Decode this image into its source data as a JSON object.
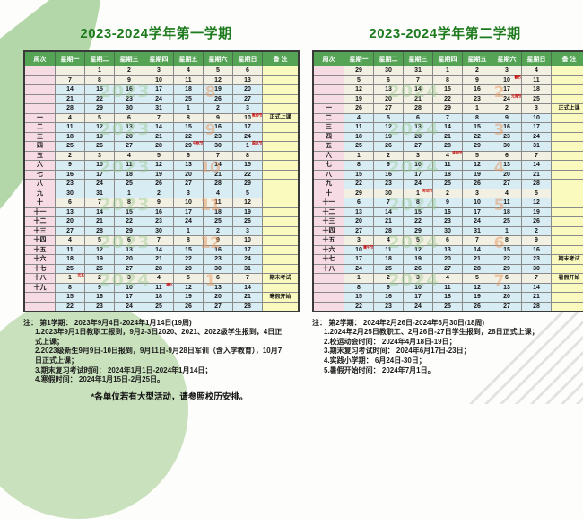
{
  "page": {
    "footnote": "*各单位若有大型活动，请参照校历安排。"
  },
  "colors": {
    "title_green": "#1d7a1d",
    "header_green": "#55a355",
    "week_column_pink": "#f7dbe4",
    "day_blue": "#d8ecf4",
    "day_cream": "#f2f0e2",
    "remark_yellow": "#fafabe",
    "festival_red": "#c40000",
    "watermark_green": "#96c88c",
    "watermark_orange": "#e8945c"
  },
  "calendars": {
    "first": {
      "title": "2023-2024学年第一学期",
      "columns": [
        "周次",
        "星期一",
        "星期二",
        "星期三",
        "星期四",
        "星期五",
        "星期六",
        "星期日",
        "备 注"
      ],
      "rows": [
        {
          "week": "",
          "tone": "cream",
          "days": [
            "",
            "1",
            "2",
            "3",
            "4",
            "5",
            "6"
          ],
          "note": ""
        },
        {
          "week": "",
          "tone": "cream",
          "days": [
            "7",
            "8",
            "9",
            "10",
            "11",
            "12",
            "13"
          ],
          "note": ""
        },
        {
          "week": "",
          "tone": "blue",
          "days": [
            "14",
            "15",
            "16",
            "17",
            "18",
            "19",
            "20"
          ],
          "note": ""
        },
        {
          "week": "",
          "tone": "blue",
          "days": [
            "21",
            "22",
            "23",
            "24",
            "25",
            "26",
            "27"
          ],
          "note": ""
        },
        {
          "week": "",
          "tone": "blue",
          "days": [
            "28",
            "29",
            "30",
            "31",
            "1",
            "2",
            "3"
          ],
          "note": ""
        },
        {
          "week": "一",
          "tone": "cream",
          "days": [
            "4",
            "5",
            "6",
            "7",
            "8",
            "9",
            [
              "10",
              "教师节"
            ]
          ],
          "note": "正式上课"
        },
        {
          "week": "二",
          "tone": "blue",
          "days": [
            "11",
            "12",
            "13",
            "14",
            "15",
            "16",
            "17"
          ],
          "note": ""
        },
        {
          "week": "三",
          "tone": "blue",
          "days": [
            "18",
            "19",
            "20",
            "21",
            "22",
            "23",
            "24"
          ],
          "note": ""
        },
        {
          "week": "四",
          "tone": "blue",
          "days": [
            "25",
            "26",
            "27",
            "28",
            [
              "29",
              "中秋节"
            ],
            "30",
            [
              "1",
              "国庆节"
            ]
          ],
          "note": ""
        },
        {
          "week": "五",
          "tone": "cream",
          "days": [
            "2",
            "3",
            "4",
            "5",
            "6",
            "7",
            "8"
          ],
          "note": ""
        },
        {
          "week": "六",
          "tone": "blue",
          "days": [
            "9",
            "10",
            "11",
            "12",
            "13",
            "14",
            "15"
          ],
          "note": ""
        },
        {
          "week": "七",
          "tone": "blue",
          "days": [
            "16",
            "17",
            "18",
            "19",
            "20",
            "21",
            "22"
          ],
          "note": ""
        },
        {
          "week": "八",
          "tone": "blue",
          "days": [
            "23",
            "24",
            "25",
            "26",
            "27",
            "28",
            "29"
          ],
          "note": ""
        },
        {
          "week": "九",
          "tone": "blue",
          "days": [
            "30",
            "31",
            "1",
            "2",
            "3",
            "4",
            "5"
          ],
          "note": ""
        },
        {
          "week": "十",
          "tone": "cream",
          "days": [
            "6",
            "7",
            "8",
            "9",
            "10",
            "11",
            "12"
          ],
          "note": ""
        },
        {
          "week": "十一",
          "tone": "blue",
          "days": [
            "13",
            "14",
            "15",
            "16",
            "17",
            "18",
            "19"
          ],
          "note": ""
        },
        {
          "week": "十二",
          "tone": "blue",
          "days": [
            "20",
            "21",
            "22",
            "23",
            "24",
            "25",
            "26"
          ],
          "note": ""
        },
        {
          "week": "十三",
          "tone": "blue",
          "days": [
            "27",
            "28",
            "29",
            "30",
            "1",
            "2",
            "3"
          ],
          "note": ""
        },
        {
          "week": "十四",
          "tone": "cream",
          "days": [
            "4",
            "5",
            "6",
            "7",
            "8",
            "9",
            "10"
          ],
          "note": ""
        },
        {
          "week": "十五",
          "tone": "blue",
          "days": [
            "11",
            "12",
            "13",
            "14",
            "15",
            "16",
            "17"
          ],
          "note": ""
        },
        {
          "week": "十六",
          "tone": "blue",
          "days": [
            "18",
            "19",
            "20",
            "21",
            "22",
            "23",
            "24"
          ],
          "note": ""
        },
        {
          "week": "十七",
          "tone": "blue",
          "days": [
            "25",
            "26",
            "27",
            "28",
            "29",
            "30",
            "31"
          ],
          "note": ""
        },
        {
          "week": "十八",
          "tone": "cream",
          "days": [
            [
              "1",
              "元旦"
            ],
            "2",
            "3",
            "4",
            "5",
            "6",
            "7"
          ],
          "note": "期末考试"
        },
        {
          "week": "十九",
          "tone": "blue",
          "days": [
            "8",
            "9",
            "10",
            [
              "11",
              "腊八"
            ],
            "12",
            "13",
            "14"
          ],
          "note": ""
        },
        {
          "week": "",
          "tone": "blue",
          "days": [
            "15",
            "16",
            "17",
            "18",
            "19",
            "20",
            "21"
          ],
          "note": "寒假开始"
        },
        {
          "week": "",
          "tone": "blue",
          "days": [
            "22",
            "23",
            "24",
            "25",
            "26",
            "27",
            "28"
          ],
          "note": ""
        }
      ],
      "watermarks": {
        "years": [
          {
            "text": "2023",
            "row": 2
          },
          {
            "text": "2023",
            "row": 6
          },
          {
            "text": "2023",
            "row": 10
          },
          {
            "text": "2023",
            "row": 14
          },
          {
            "text": "2023",
            "row": 18
          },
          {
            "text": "2024",
            "row": 22
          }
        ],
        "months": [
          {
            "text": "8",
            "row": 2
          },
          {
            "text": "9",
            "row": 6
          },
          {
            "text": "10",
            "row": 10
          },
          {
            "text": "11",
            "row": 14
          },
          {
            "text": "12",
            "row": 18
          },
          {
            "text": "1",
            "row": 22
          }
        ]
      },
      "notes_title": "注： 第1学期： 2023年9月4日-2024年1月14日(19周)",
      "notes": [
        "1.2023年9月1日教职工报到，9月2-3日2020、2021、2022级学生报到，4日正式上课；",
        "2.2023级新生9月9日-10日报到，9月11日-9月28日军训（含入学教育），10月7日正式上课；",
        "3.期末复习考试时间： 2024年1月1日-2024年1月14日；",
        "4.寒假时间： 2024年1月15日-2月25日。"
      ]
    },
    "second": {
      "title": "2023-2024学年第二学期",
      "columns": [
        "周次",
        "星期一",
        "星期二",
        "星期三",
        "星期四",
        "星期五",
        "星期六",
        "星期日",
        "备 注"
      ],
      "rows": [
        {
          "week": "",
          "tone": "cream",
          "days": [
            "29",
            "30",
            "31",
            "1",
            "2",
            "3",
            "4"
          ],
          "note": ""
        },
        {
          "week": "",
          "tone": "cream",
          "days": [
            "5",
            "6",
            "7",
            "8",
            "9",
            [
              "10",
              "春节"
            ],
            "11"
          ],
          "note": ""
        },
        {
          "week": "",
          "tone": "cream",
          "days": [
            "12",
            "13",
            "14",
            "15",
            "16",
            "17",
            "18"
          ],
          "note": ""
        },
        {
          "week": "",
          "tone": "cream",
          "days": [
            "19",
            "20",
            "21",
            "22",
            "23",
            [
              "24",
              "元宵节"
            ],
            "25"
          ],
          "note": ""
        },
        {
          "week": "一",
          "tone": "cream",
          "days": [
            "26",
            "27",
            "28",
            "29",
            "1",
            "2",
            "3"
          ],
          "note": "正式上课"
        },
        {
          "week": "二",
          "tone": "blue",
          "days": [
            "4",
            "5",
            "6",
            "7",
            "8",
            "9",
            "10"
          ],
          "note": ""
        },
        {
          "week": "三",
          "tone": "blue",
          "days": [
            "11",
            "12",
            "13",
            "14",
            "15",
            "16",
            "17"
          ],
          "note": ""
        },
        {
          "week": "四",
          "tone": "blue",
          "days": [
            "18",
            "19",
            "20",
            "21",
            "22",
            "23",
            "24"
          ],
          "note": ""
        },
        {
          "week": "五",
          "tone": "blue",
          "days": [
            "25",
            "26",
            "27",
            "28",
            "29",
            "30",
            "31"
          ],
          "note": ""
        },
        {
          "week": "六",
          "tone": "cream",
          "days": [
            "1",
            "2",
            "3",
            [
              "4",
              "清明节"
            ],
            "5",
            "6",
            "7"
          ],
          "note": ""
        },
        {
          "week": "七",
          "tone": "blue",
          "days": [
            "8",
            "9",
            "10",
            "11",
            "12",
            "13",
            "14"
          ],
          "note": ""
        },
        {
          "week": "八",
          "tone": "blue",
          "days": [
            "15",
            "16",
            "17",
            "18",
            "19",
            "20",
            "21"
          ],
          "note": ""
        },
        {
          "week": "九",
          "tone": "blue",
          "days": [
            "22",
            "23",
            "24",
            "25",
            "26",
            "27",
            "28"
          ],
          "note": ""
        },
        {
          "week": "十",
          "tone": "cream",
          "days": [
            "29",
            "30",
            [
              "1",
              "劳动节"
            ],
            "2",
            "3",
            "4",
            "5"
          ],
          "note": ""
        },
        {
          "week": "十一",
          "tone": "blue",
          "days": [
            "6",
            "7",
            "8",
            "9",
            "10",
            "11",
            "12"
          ],
          "note": ""
        },
        {
          "week": "十二",
          "tone": "blue",
          "days": [
            "13",
            "14",
            "15",
            "16",
            "17",
            "18",
            "19"
          ],
          "note": ""
        },
        {
          "week": "十三",
          "tone": "blue",
          "days": [
            "20",
            "21",
            "22",
            "23",
            "24",
            "25",
            "26"
          ],
          "note": ""
        },
        {
          "week": "十四",
          "tone": "blue",
          "days": [
            "27",
            "28",
            "29",
            "30",
            "31",
            "1",
            "2"
          ],
          "note": ""
        },
        {
          "week": "十五",
          "tone": "cream",
          "days": [
            "3",
            "4",
            "5",
            "6",
            "7",
            "8",
            "9"
          ],
          "note": ""
        },
        {
          "week": "十六",
          "tone": "blue",
          "days": [
            [
              "10",
              "端午节"
            ],
            "11",
            "12",
            "13",
            "14",
            "15",
            "16"
          ],
          "note": ""
        },
        {
          "week": "十七",
          "tone": "blue",
          "days": [
            "17",
            "18",
            "19",
            "20",
            "21",
            "22",
            "23"
          ],
          "note": "期末考试"
        },
        {
          "week": "十八",
          "tone": "blue",
          "days": [
            "24",
            "25",
            "26",
            "27",
            "28",
            "29",
            "30"
          ],
          "note": ""
        },
        {
          "week": "",
          "tone": "cream",
          "days": [
            "1",
            "2",
            "3",
            "4",
            "5",
            "6",
            "7"
          ],
          "note": "暑假开始"
        },
        {
          "week": "",
          "tone": "blue",
          "days": [
            "8",
            "9",
            "10",
            "11",
            "12",
            "13",
            "14"
          ],
          "note": ""
        },
        {
          "week": "",
          "tone": "blue",
          "days": [
            "15",
            "16",
            "17",
            "18",
            "19",
            "20",
            "21"
          ],
          "note": ""
        },
        {
          "week": "",
          "tone": "blue",
          "days": [
            "22",
            "23",
            "24",
            "25",
            "26",
            "27",
            "28"
          ],
          "note": ""
        }
      ],
      "watermarks": {
        "years": [
          {
            "text": "2024",
            "row": 2
          },
          {
            "text": "2024",
            "row": 6
          },
          {
            "text": "2024",
            "row": 10
          },
          {
            "text": "2024",
            "row": 14
          },
          {
            "text": "2024",
            "row": 18
          },
          {
            "text": "2024",
            "row": 22
          }
        ],
        "months": [
          {
            "text": "2",
            "row": 2
          },
          {
            "text": "3",
            "row": 6
          },
          {
            "text": "4",
            "row": 10
          },
          {
            "text": "5",
            "row": 14
          },
          {
            "text": "6",
            "row": 18
          },
          {
            "text": "7",
            "row": 22
          }
        ]
      },
      "notes_title": "注： 第2学期： 2024年2月26日-2024年6月30日(18周)",
      "notes": [
        "1.2024年2月25日教职工、2月26日-27日学生报到，28日正式上课；",
        "2.校运动会时间： 2024年4月18日-19日；",
        "3.期末复习考试时间： 2024年6月17日-23日；",
        "4.实践小学期： 6月24日-30日；",
        "5.暑假开始时间： 2024年7月1日。"
      ]
    }
  }
}
